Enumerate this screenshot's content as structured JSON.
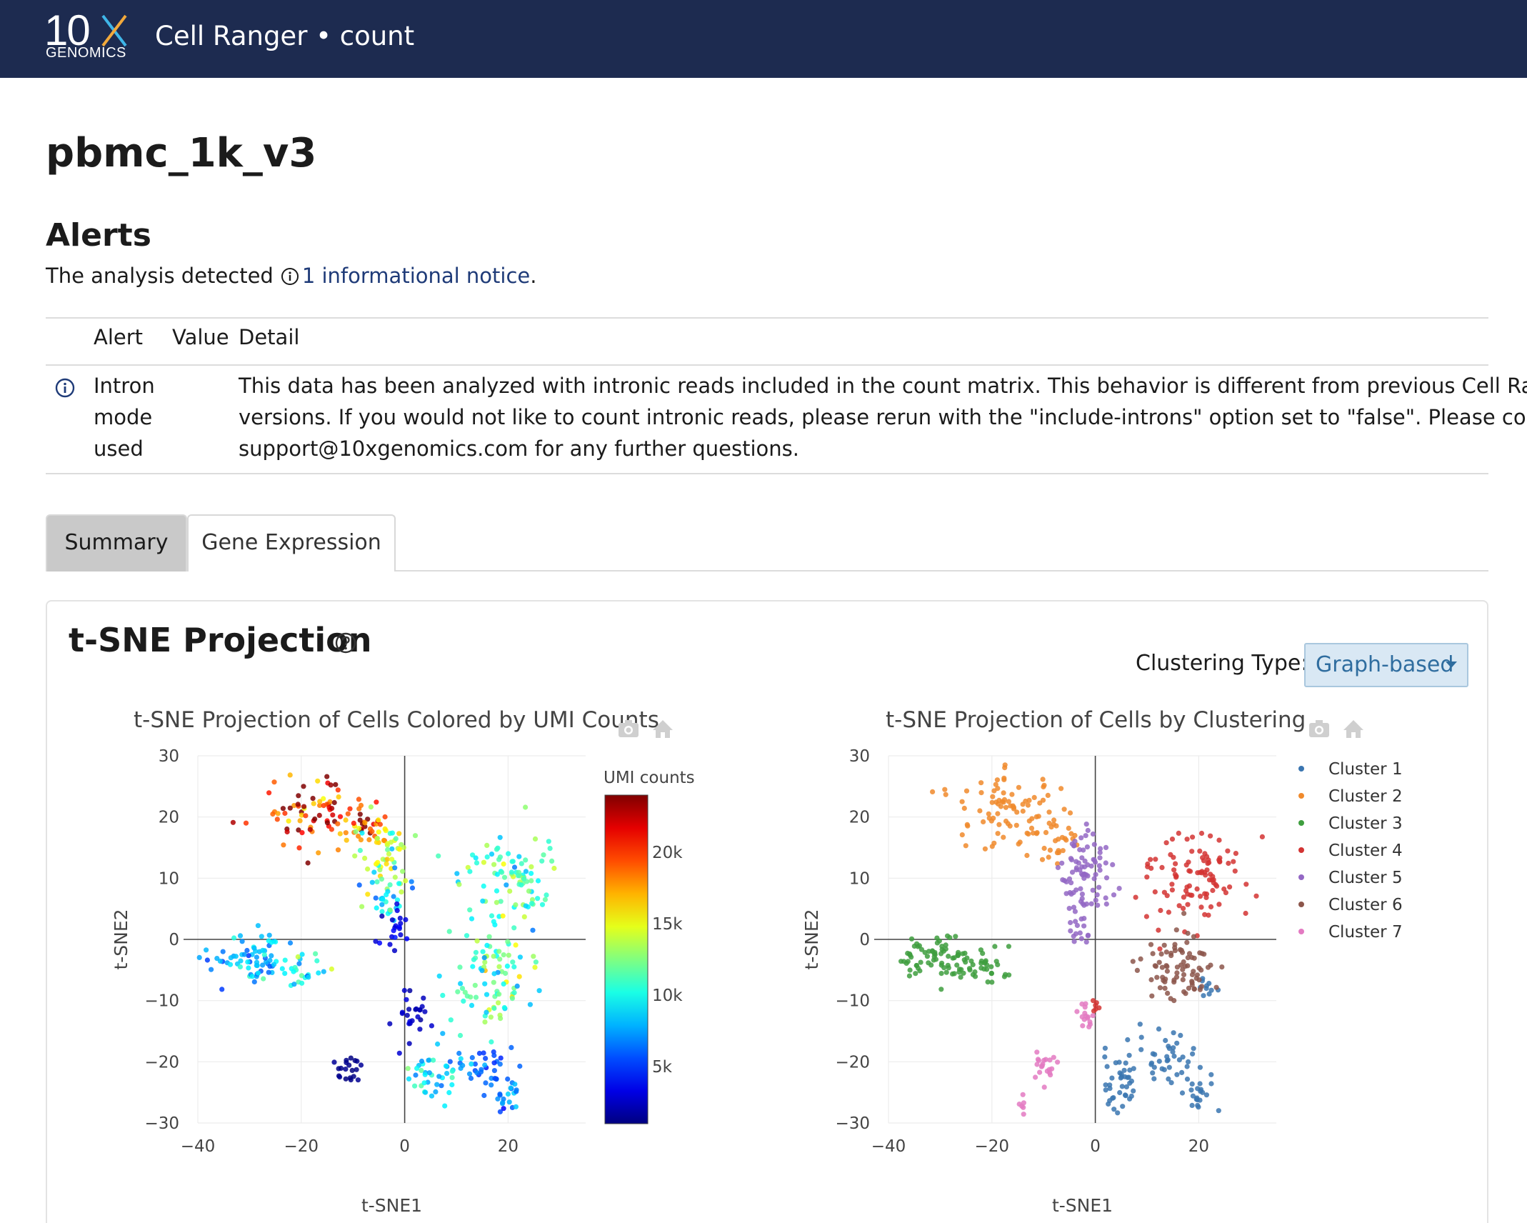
{
  "header": {
    "logo_top": "10",
    "logo_bottom": "GENOMICS",
    "app_title": "Cell Ranger • count"
  },
  "page": {
    "title": "pbmc_1k_v3"
  },
  "alerts": {
    "heading": "Alerts",
    "summary_prefix": "The analysis detected",
    "summary_link": "1 informational notice",
    "summary_suffix": ".",
    "columns": [
      "Alert",
      "Value",
      "Detail"
    ],
    "rows": [
      {
        "icon": "info-icon",
        "alert_lines": [
          "Intron",
          "mode",
          "used"
        ],
        "value": "",
        "detail_lines": [
          "This data has been analyzed with intronic reads included in the count matrix. This behavior is different from previous Cell Ranger",
          "versions. If you would not like to count intronic reads, please rerun with the \"include-introns\" option set to \"false\". Please contact",
          "support@10xgenomics.com for any further questions."
        ]
      }
    ]
  },
  "tabs": [
    {
      "label": "Summary",
      "active": true
    },
    {
      "label": "Gene Expression",
      "active": false
    }
  ],
  "tsne_card": {
    "title": "t-SNE Projection",
    "clustering_label": "Clustering Type:",
    "clustering_value": "Graph-based"
  },
  "chart_data": [
    {
      "type": "scatter",
      "title": "t-SNE Projection of Cells Colored by UMI Counts",
      "xlabel": "t-SNE1",
      "ylabel": "t-SNE2",
      "xlim": [
        -40,
        35
      ],
      "ylim": [
        -30,
        30
      ],
      "xticks": [
        -40,
        -20,
        0,
        20
      ],
      "yticks": [
        -30,
        -20,
        -10,
        0,
        10,
        20,
        30
      ],
      "colorbar": {
        "title": "UMI counts",
        "ticks": [
          "5k",
          "10k",
          "15k",
          "20k"
        ],
        "tick_values": [
          5000,
          10000,
          15000,
          20000
        ],
        "range": [
          1000,
          24000
        ],
        "colormap": "jet"
      },
      "groups": [
        {
          "cx": -18,
          "cy": 21,
          "sx": 5,
          "sy": 3,
          "n": 70,
          "umi": 21000
        },
        {
          "cx": -8,
          "cy": 18,
          "sx": 3,
          "sy": 2,
          "n": 40,
          "umi": 18000
        },
        {
          "cx": -3,
          "cy": 12,
          "sx": 2.5,
          "sy": 3,
          "n": 50,
          "umi": 13000
        },
        {
          "cx": -3,
          "cy": 7,
          "sx": 2,
          "sy": 2,
          "n": 25,
          "umi": 9000
        },
        {
          "cx": -2,
          "cy": 2,
          "sx": 1.5,
          "sy": 2,
          "n": 20,
          "umi": 3000
        },
        {
          "cx": -30,
          "cy": -3,
          "sx": 4,
          "sy": 2,
          "n": 70,
          "umi": 8000
        },
        {
          "cx": -20,
          "cy": -5,
          "sx": 2.5,
          "sy": 1.5,
          "n": 25,
          "umi": 10000
        },
        {
          "cx": 20,
          "cy": 10,
          "sx": 5,
          "sy": 3.5,
          "n": 90,
          "umi": 11000
        },
        {
          "cx": 17,
          "cy": -6,
          "sx": 4,
          "sy": 4,
          "n": 90,
          "umi": 11500
        },
        {
          "cx": 2,
          "cy": -12,
          "sx": 2,
          "sy": 2,
          "n": 25,
          "umi": 2500
        },
        {
          "cx": -11,
          "cy": -21,
          "sx": 1.2,
          "sy": 1.5,
          "n": 20,
          "umi": 1200
        },
        {
          "cx": 6,
          "cy": -22,
          "sx": 3,
          "sy": 2.5,
          "n": 40,
          "umi": 9000
        },
        {
          "cx": 15,
          "cy": -21,
          "sx": 3,
          "sy": 2,
          "n": 35,
          "umi": 6000
        },
        {
          "cx": 20,
          "cy": -26,
          "sx": 1.5,
          "sy": 1.5,
          "n": 20,
          "umi": 7000
        }
      ]
    },
    {
      "type": "scatter",
      "title": "t-SNE Projection of Cells by Clustering",
      "xlabel": "t-SNE1",
      "ylabel": "t-SNE2",
      "xlim": [
        -40,
        35
      ],
      "ylim": [
        -30,
        30
      ],
      "xticks": [
        -40,
        -20,
        0,
        20
      ],
      "yticks": [
        -30,
        -20,
        -10,
        0,
        10,
        20,
        30
      ],
      "legend_position": "right",
      "series": [
        {
          "name": "Cluster 1",
          "color": "#3a75b0",
          "groups": [
            {
              "cx": 5,
              "cy": -23,
              "sx": 2.5,
              "sy": 2.5,
              "n": 40
            },
            {
              "cx": 14,
              "cy": -20,
              "sx": 3,
              "sy": 2,
              "n": 40
            },
            {
              "cx": 20,
              "cy": -26,
              "sx": 1.5,
              "sy": 1.5,
              "n": 20
            },
            {
              "cx": 22,
              "cy": -8,
              "sx": 1,
              "sy": 1.5,
              "n": 10
            }
          ]
        },
        {
          "name": "Cluster 2",
          "color": "#f08a2c",
          "groups": [
            {
              "cx": -18,
              "cy": 21,
              "sx": 5,
              "sy": 3,
              "n": 80
            },
            {
              "cx": -8,
              "cy": 17,
              "sx": 3,
              "sy": 2,
              "n": 30
            }
          ]
        },
        {
          "name": "Cluster 3",
          "color": "#3e9e3e",
          "groups": [
            {
              "cx": -30,
              "cy": -3,
              "sx": 4,
              "sy": 2,
              "n": 80
            },
            {
              "cx": -20,
              "cy": -5,
              "sx": 2.5,
              "sy": 1.5,
              "n": 25
            }
          ]
        },
        {
          "name": "Cluster 4",
          "color": "#d33433",
          "groups": [
            {
              "cx": 20,
              "cy": 10,
              "sx": 5,
              "sy": 3.5,
              "n": 100
            },
            {
              "cx": 0,
              "cy": -11,
              "sx": 0.6,
              "sy": 0.8,
              "n": 6
            }
          ]
        },
        {
          "name": "Cluster 5",
          "color": "#9367c4",
          "groups": [
            {
              "cx": -2,
              "cy": 11,
              "sx": 2.5,
              "sy": 4,
              "n": 80
            },
            {
              "cx": -3,
              "cy": 2,
              "sx": 1.5,
              "sy": 2,
              "n": 15
            }
          ]
        },
        {
          "name": "Cluster 6",
          "color": "#8c564b",
          "groups": [
            {
              "cx": 16,
              "cy": -5,
              "sx": 3.5,
              "sy": 3.5,
              "n": 80
            }
          ]
        },
        {
          "name": "Cluster 7",
          "color": "#e37ac2",
          "groups": [
            {
              "cx": -10,
              "cy": -21,
              "sx": 1.2,
              "sy": 1.2,
              "n": 20
            },
            {
              "cx": -2,
              "cy": -13,
              "sx": 1,
              "sy": 1,
              "n": 15
            },
            {
              "cx": -14,
              "cy": -27,
              "sx": 0.4,
              "sy": 0.8,
              "n": 6
            }
          ]
        }
      ]
    }
  ]
}
